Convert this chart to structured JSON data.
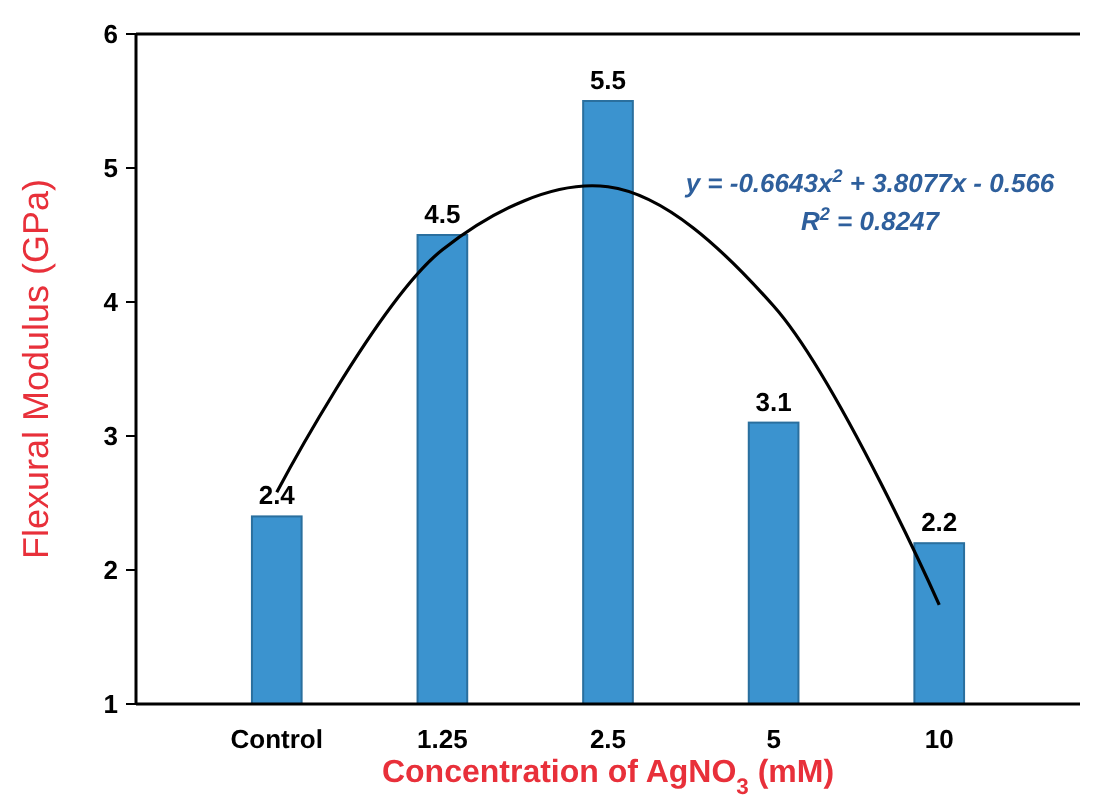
{
  "chart_data": {
    "type": "bar",
    "xlabel": "Concentration of AgNO$_{3}$ (mM)",
    "ylabel": "Flexural Modulus (GPa)",
    "categories": [
      "Control",
      "1.25",
      "2.5",
      "5",
      "10"
    ],
    "series": [
      {
        "color": "#3b93cf",
        "values": [
          2.4,
          4.5,
          5.5,
          3.1,
          2.2
        ],
        "value_labels": [
          "2.4",
          "4.5",
          "5.5",
          "3.1",
          "2.2"
        ]
      },
      {
        "type": "line",
        "color": "#000000",
        "x": [
          "Control",
          "1.25",
          "2.5",
          "5",
          "10"
        ],
        "values": [
          2.58,
          4.39,
          4.86,
          3.97,
          1.74
        ]
      }
    ],
    "ylim": [
      1,
      6
    ],
    "yticks": [
      1,
      2,
      3,
      4,
      5,
      6
    ],
    "grid": false,
    "marker": "none",
    "line_style": "solid",
    "annotations": [
      "y = -0.6643x$^{2}$ + 3.8077x - 0.566",
      "R$^{2}$ = 0.8247"
    ]
  }
}
